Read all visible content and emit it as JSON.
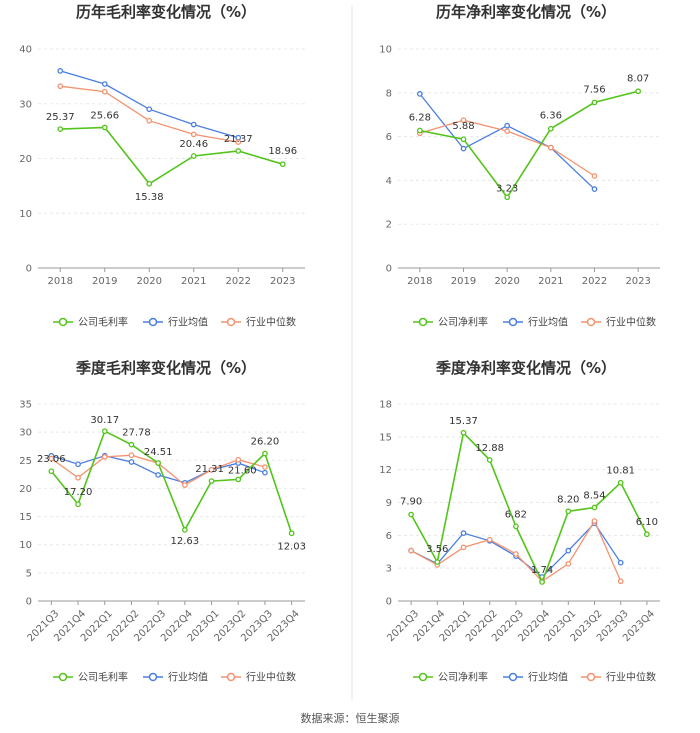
{
  "source": "数据来源：恒生聚源",
  "colors": {
    "company": "#52c41a",
    "avg": "#4a7fe0",
    "median": "#f4936f",
    "grid": "#e8e8e8",
    "axis": "#999999",
    "divider": "#e6e6e6"
  },
  "chart_data": [
    {
      "type": "line",
      "title": "历年毛利率变化情况（%）",
      "categories": [
        "2018",
        "2019",
        "2020",
        "2021",
        "2022",
        "2023"
      ],
      "ylim": [
        0,
        40
      ],
      "yticks": [
        0,
        10,
        20,
        30,
        40
      ],
      "legend": [
        "公司毛利率",
        "行业均值",
        "行业中位数"
      ],
      "series": [
        {
          "name": "公司毛利率",
          "key": "company",
          "values": [
            25.37,
            25.66,
            15.38,
            20.46,
            21.37,
            18.96
          ],
          "labels": [
            "25.37",
            "25.66",
            "15.38",
            "20.46",
            "21.37",
            "18.96"
          ]
        },
        {
          "name": "行业均值",
          "key": "avg",
          "values": [
            36.0,
            33.6,
            29.0,
            26.2,
            23.8,
            null
          ]
        },
        {
          "name": "行业中位数",
          "key": "median",
          "values": [
            33.2,
            32.2,
            26.9,
            24.4,
            23.0,
            null
          ]
        }
      ]
    },
    {
      "type": "line",
      "title": "历年净利率变化情况（%）",
      "categories": [
        "2018",
        "2019",
        "2020",
        "2021",
        "2022",
        "2023"
      ],
      "ylim": [
        0,
        10
      ],
      "yticks": [
        0,
        2,
        4,
        6,
        8,
        10
      ],
      "legend": [
        "公司净利率",
        "行业均值",
        "行业中位数"
      ],
      "series": [
        {
          "name": "公司净利率",
          "key": "company",
          "values": [
            6.28,
            5.88,
            3.23,
            6.36,
            7.56,
            8.07
          ],
          "labels": [
            "6.28",
            "5.88",
            "3.23",
            "6.36",
            "7.56",
            "8.07"
          ]
        },
        {
          "name": "行业均值",
          "key": "avg",
          "values": [
            7.95,
            5.45,
            6.5,
            5.5,
            3.6,
            null
          ]
        },
        {
          "name": "行业中位数",
          "key": "median",
          "values": [
            6.15,
            6.75,
            6.25,
            5.5,
            4.2,
            null
          ]
        }
      ]
    },
    {
      "type": "line",
      "title": "季度毛利率变化情况（%）",
      "categories": [
        "2021Q3",
        "2021Q4",
        "2022Q1",
        "2022Q2",
        "2022Q3",
        "2022Q4",
        "2023Q1",
        "2023Q2",
        "2023Q3",
        "2023Q4"
      ],
      "ylim": [
        0,
        35
      ],
      "yticks": [
        0,
        5,
        10,
        15,
        20,
        25,
        30,
        35
      ],
      "legend": [
        "公司毛利率",
        "行业均值",
        "行业中位数"
      ],
      "series": [
        {
          "name": "公司毛利率",
          "key": "company",
          "values": [
            23.06,
            17.2,
            30.17,
            27.78,
            24.51,
            12.63,
            21.31,
            21.6,
            26.2,
            12.03
          ],
          "labels": [
            "23.06",
            "17.20",
            "30.17",
            "27.78",
            "24.51",
            "12.63",
            "21.31",
            "21.60",
            "26.20",
            "12.03"
          ]
        },
        {
          "name": "行业均值",
          "key": "avg",
          "values": [
            25.8,
            24.3,
            25.8,
            24.7,
            22.4,
            21.0,
            23.3,
            24.5,
            22.8,
            null
          ]
        },
        {
          "name": "行业中位数",
          "key": "median",
          "values": [
            25.3,
            21.9,
            25.6,
            25.9,
            24.5,
            20.6,
            23.3,
            25.1,
            23.8,
            null
          ]
        }
      ]
    },
    {
      "type": "line",
      "title": "季度净利率变化情况（%）",
      "categories": [
        "2021Q3",
        "2021Q4",
        "2022Q1",
        "2022Q2",
        "2022Q3",
        "2022Q4",
        "2023Q1",
        "2023Q2",
        "2023Q3",
        "2023Q4"
      ],
      "ylim": [
        0,
        18
      ],
      "yticks": [
        0,
        3,
        6,
        9,
        12,
        15,
        18
      ],
      "legend": [
        "公司净利率",
        "行业均值",
        "行业中位数"
      ],
      "series": [
        {
          "name": "公司净利率",
          "key": "company",
          "values": [
            7.9,
            3.56,
            15.37,
            12.88,
            6.82,
            1.74,
            8.2,
            8.54,
            10.81,
            6.1
          ],
          "labels": [
            "7.90",
            "3.56",
            "15.37",
            "12.88",
            "6.82",
            "1.74",
            "8.20",
            "8.54",
            "10.81",
            "6.10"
          ]
        },
        {
          "name": "行业均值",
          "key": "avg",
          "values": [
            4.6,
            3.4,
            6.2,
            5.5,
            4.1,
            2.2,
            4.6,
            7.1,
            3.5,
            null
          ]
        },
        {
          "name": "行业中位数",
          "key": "median",
          "values": [
            4.6,
            3.3,
            4.9,
            5.6,
            4.3,
            1.8,
            3.4,
            7.3,
            1.8,
            null
          ]
        }
      ]
    }
  ]
}
